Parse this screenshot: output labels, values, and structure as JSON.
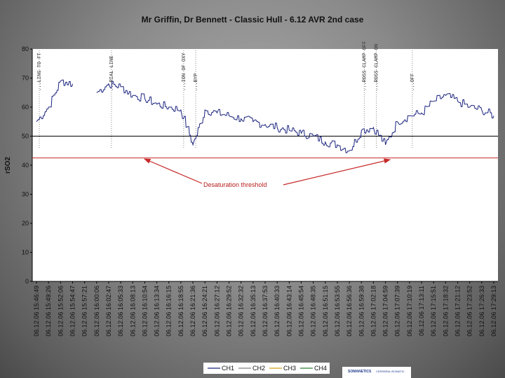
{
  "chart_data": {
    "type": "line",
    "title": "Mr Griffin, Dr Bennett - Classic Hull - 6.12 AVR 2nd case",
    "ylabel": "rSO2",
    "xlabel": "",
    "ylim": [
      0,
      80
    ],
    "yticks": [
      0,
      10,
      20,
      30,
      40,
      50,
      60,
      70,
      80
    ],
    "grid": false,
    "legend_position": "bottom",
    "x_categories": [
      "06.12.06 15:46:49",
      "06.12.06 15:49:26",
      "06.12.06 15:52:06",
      "06.12.06 15:54:47",
      "06.12.06 15:57:21",
      "06.12.06 16:00:06",
      "06.12.06 16:02:47",
      "06.12.06 16:05:33",
      "06.12.06 16:08:13",
      "06.12.06 16:10:54",
      "06.12.06 16:13:34",
      "06.12.06 16:16:15",
      "06.12.06 16:18:55",
      "06.12.06 16:21:36",
      "06.12.06 16:24:21",
      "06.12.06 16:27:12",
      "06.12.06 16:29:52",
      "06.12.06 16:32:32",
      "06.12.06 16:35:13",
      "06.12.06 16:37:53",
      "06.12.06 16:40:33",
      "06.12.06 16:43:14",
      "06.12.06 16:45:54",
      "06.12.06 16:48:35",
      "06.12.06 16:51:15",
      "06.12.06 16:53:55",
      "06.12.06 16:56:36",
      "06.12.06 16:59:38",
      "06.12.06 17:02:18",
      "06.12.06 17:04:59",
      "06.12.06 17:07:39",
      "06.12.06 17:10:19",
      "06.12.06 17:13:11",
      "06.12.06 17:15:51",
      "06.12.06 17:18:32",
      "06.12.06 17:21:12",
      "06.12.06 17:23:52",
      "06.12.06 17:26:33",
      "06.12.06 17:29:13"
    ],
    "series": [
      {
        "name": "CH1",
        "color": "#1a237e",
        "values": [
          55,
          60,
          69,
          68,
          null,
          65,
          68,
          67,
          64,
          63,
          61,
          60,
          59,
          47,
          59,
          58,
          57,
          56,
          55,
          54,
          53,
          52,
          51,
          50,
          48,
          47,
          45,
          52,
          53,
          47,
          55,
          57,
          58,
          62,
          64,
          62,
          60,
          59,
          57
        ]
      },
      {
        "name": "CH2",
        "color": "#808080",
        "values": []
      },
      {
        "name": "CH3",
        "color": "#d4a017",
        "values": []
      },
      {
        "name": "CH4",
        "color": "#2e7d32",
        "values": []
      }
    ],
    "reference_lines": [
      {
        "value": 50,
        "color": "#000000"
      },
      {
        "value": 42.5,
        "color": "#c62828"
      }
    ],
    "annotation": {
      "text": "Desaturation threshold",
      "color": "#c62828"
    },
    "event_markers": [
      {
        "category_index": 0,
        "text": "...LING TO FT"
      },
      {
        "category_index": 6,
        "text": "...RIAL LINE"
      },
      {
        "category_index": 12,
        "text": "...ION OF OXY"
      },
      {
        "category_index": 13,
        "text": "...BYP"
      },
      {
        "category_index": 27,
        "text": "...ROSS CLAMP OFF"
      },
      {
        "category_index": 28,
        "text": "...ROSS CLAMP ON"
      },
      {
        "category_index": 31,
        "text": "...OFF"
      }
    ]
  },
  "logo": {
    "text_main": "SOMANETICS",
    "text_sub": "CEREBRAL/SOMATIC"
  }
}
